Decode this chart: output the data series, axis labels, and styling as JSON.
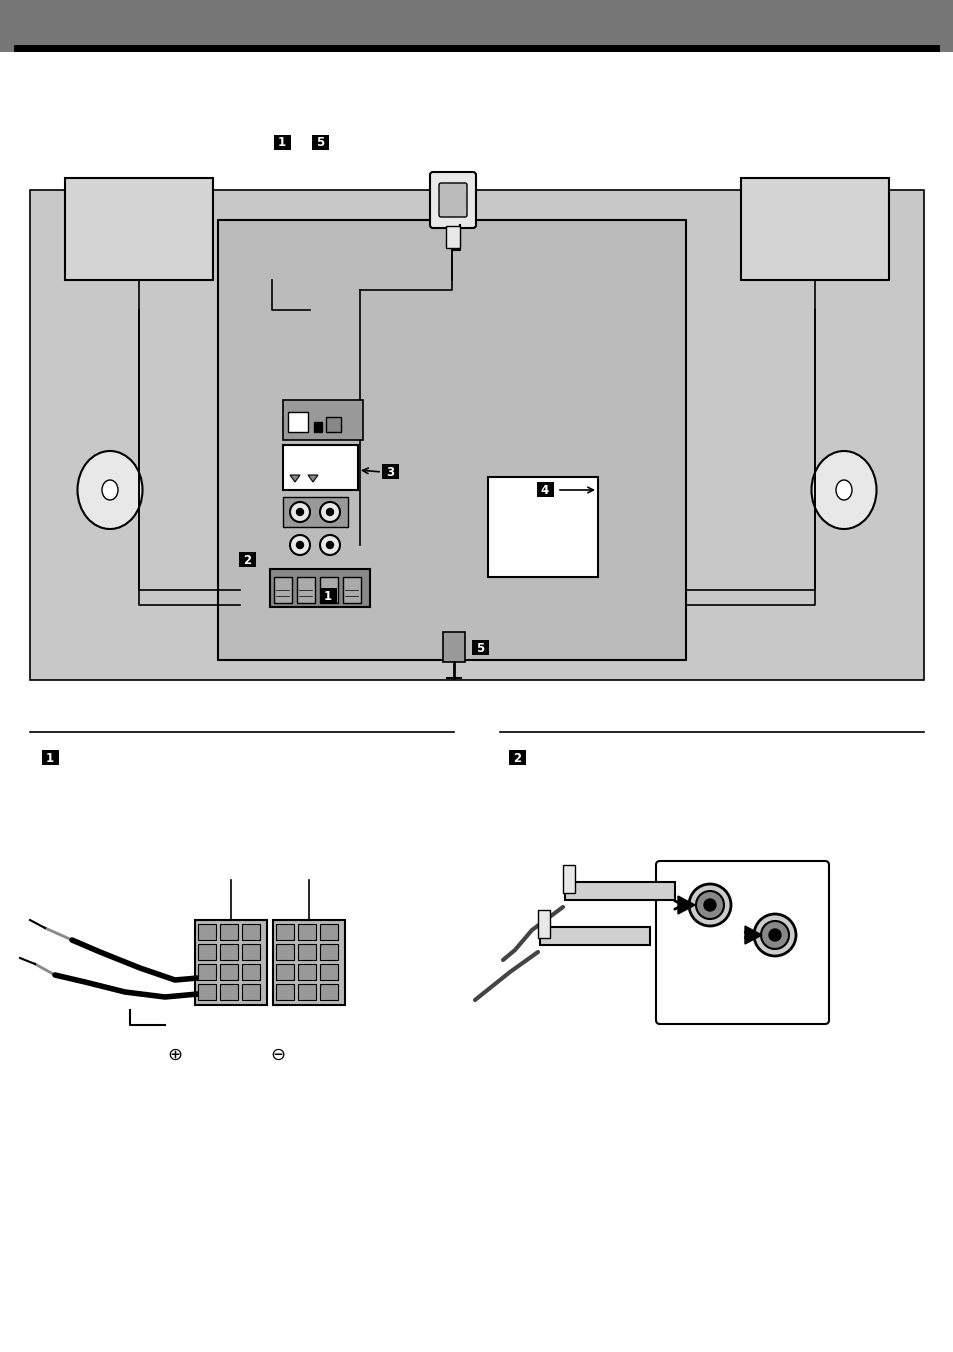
{
  "bg_color": "#ffffff",
  "header_color": "#777777",
  "page_width": 9.54,
  "page_height": 13.52,
  "outer_gray": "#c8c8c8",
  "main_gray": "#bbbbbb",
  "speaker_gray": "#d4d4d4",
  "light_gray": "#e8e8e8",
  "connector_gray": "#999999",
  "dark_gray": "#888888"
}
